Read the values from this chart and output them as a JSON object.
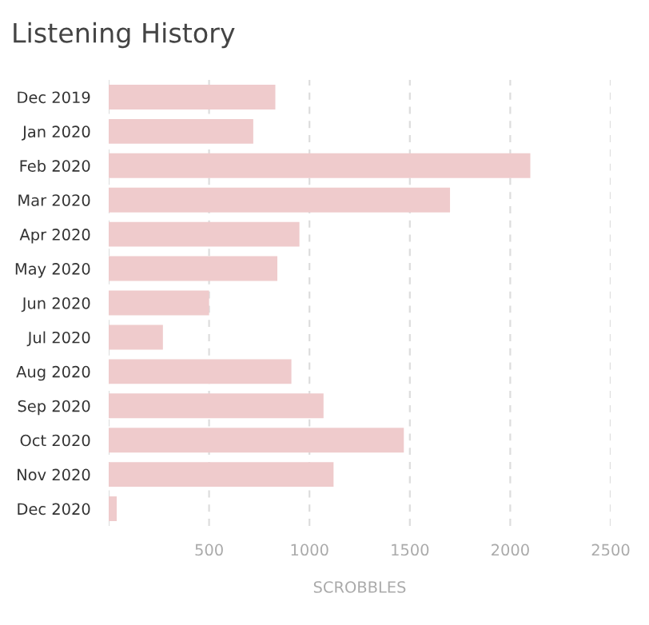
{
  "chart_data": {
    "type": "bar",
    "orientation": "horizontal",
    "title": "Listening History",
    "xlabel": "SCROBBLES",
    "categories": [
      "Dec 2019",
      "Jan 2020",
      "Feb 2020",
      "Mar 2020",
      "Apr 2020",
      "May 2020",
      "Jun 2020",
      "Jul 2020",
      "Aug 2020",
      "Sep 2020",
      "Oct 2020",
      "Nov 2020",
      "Dec 2020"
    ],
    "values": [
      830,
      720,
      2100,
      1700,
      950,
      840,
      500,
      270,
      910,
      1070,
      1470,
      1120,
      40
    ],
    "color": "#efcbcc",
    "xlim": [
      0,
      2500
    ],
    "xticks": [
      {
        "value": 0,
        "label": null
      },
      500,
      1000,
      1500,
      2000,
      2500
    ],
    "grid": "x"
  }
}
